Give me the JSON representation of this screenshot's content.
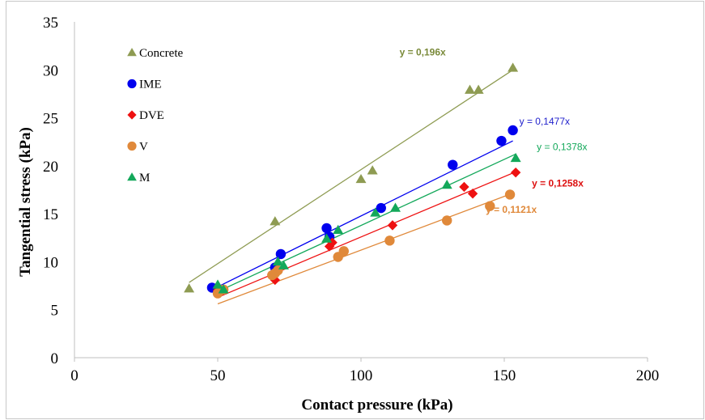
{
  "chart_data": {
    "type": "scatter",
    "xlabel": "Contact pressure (kPa)",
    "ylabel": "Tangential stress (kPa)",
    "xlim": [
      0,
      200
    ],
    "ylim": [
      0,
      35
    ],
    "xticks": [
      0,
      50,
      100,
      150,
      200
    ],
    "yticks": [
      0,
      5,
      10,
      15,
      20,
      25,
      30,
      35
    ],
    "grid": false,
    "legend_position": "top-left",
    "series": [
      {
        "name": "Concrete",
        "marker": "triangle",
        "color": "#8e9b52",
        "trendline": {
          "slope": 0.196,
          "x_range": [
            40,
            153
          ],
          "label": "y = 0,196x",
          "label_color": "#7a8a3a"
        },
        "points": [
          [
            40,
            7.2
          ],
          [
            70,
            14.2
          ],
          [
            100,
            18.6
          ],
          [
            104,
            19.5
          ],
          [
            138,
            27.9
          ],
          [
            141,
            27.9
          ],
          [
            153,
            30.2
          ]
        ]
      },
      {
        "name": "IME",
        "marker": "circle",
        "color": "#0000ee",
        "trendline": {
          "slope": 0.1477,
          "x_range": [
            48,
            153
          ],
          "label": "y = 0,1477x",
          "label_color": "#1f1fcc"
        },
        "points": [
          [
            48,
            7.3
          ],
          [
            70,
            9.4
          ],
          [
            72,
            10.8
          ],
          [
            88,
            13.5
          ],
          [
            89,
            12.6
          ],
          [
            107,
            15.6
          ],
          [
            132,
            20.1
          ],
          [
            149,
            22.6
          ],
          [
            153,
            23.7
          ]
        ]
      },
      {
        "name": "DVE",
        "marker": "diamond",
        "color": "#ee1111",
        "trendline": {
          "slope": 0.1258,
          "x_range": [
            50,
            154
          ],
          "label": "y = 0,1258x",
          "label_color": "#dd1111"
        },
        "points": [
          [
            50,
            7.0
          ],
          [
            70,
            8.1
          ],
          [
            89,
            11.6
          ],
          [
            90,
            12.0
          ],
          [
            111,
            13.8
          ],
          [
            136,
            17.8
          ],
          [
            139,
            17.1
          ],
          [
            154,
            19.3
          ]
        ]
      },
      {
        "name": "V",
        "marker": "circle",
        "color": "#e0893a",
        "trendline": {
          "slope": 0.1121,
          "x_range": [
            50,
            152
          ],
          "label": "y = 0,1121x",
          "label_color": "#e0893a"
        },
        "points": [
          [
            50,
            6.7
          ],
          [
            52,
            7.1
          ],
          [
            69,
            8.6
          ],
          [
            70,
            8.8
          ],
          [
            71,
            9.1
          ],
          [
            92,
            10.5
          ],
          [
            94,
            11.1
          ],
          [
            110,
            12.2
          ],
          [
            130,
            14.3
          ],
          [
            145,
            15.8
          ],
          [
            152,
            17.0
          ]
        ]
      },
      {
        "name": "M",
        "marker": "triangle",
        "color": "#13a85a",
        "trendline": {
          "slope": 0.1378,
          "x_range": [
            51,
            154
          ],
          "label": "y = 0,1378x",
          "label_color": "#13a85a"
        },
        "points": [
          [
            50,
            7.6
          ],
          [
            52,
            7.1
          ],
          [
            71,
            10.0
          ],
          [
            73,
            9.6
          ],
          [
            88,
            12.4
          ],
          [
            92,
            13.3
          ],
          [
            105,
            15.1
          ],
          [
            112,
            15.6
          ],
          [
            130,
            18.0
          ],
          [
            154,
            20.8
          ]
        ]
      }
    ]
  }
}
